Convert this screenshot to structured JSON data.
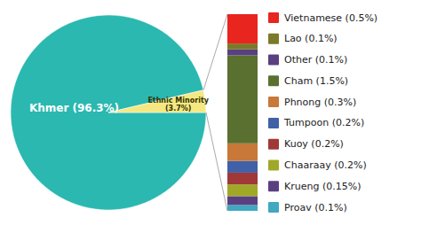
{
  "chart_data": [
    {
      "type": "pie",
      "categories": [
        "Khmer (96.3%)",
        "Ethnic Minority\n(3.7%)"
      ],
      "values": [
        96.3,
        3.7
      ],
      "colors": [
        "#2ab8b0",
        "#f5e882"
      ]
    },
    {
      "type": "bar",
      "stacked": true,
      "legend": "right",
      "tick_labels": false,
      "ylim": [
        0,
        3.35
      ],
      "series": [
        {
          "name": "Vietnamese (0.5%)",
          "color": "#e8251e",
          "values": [
            0.5
          ]
        },
        {
          "name": "Lao (0.1%)",
          "color": "#7a7a2a",
          "values": [
            0.1
          ]
        },
        {
          "name": "Other (0.1%)",
          "color": "#5a4080",
          "values": [
            0.1
          ]
        },
        {
          "name": "Cham (1.5%)",
          "color": "#5a7030",
          "values": [
            1.5
          ]
        },
        {
          "name": "Phnong (0.3%)",
          "color": "#c87838",
          "values": [
            0.3
          ]
        },
        {
          "name": "Tumpoon (0.2%)",
          "color": "#4060a8",
          "values": [
            0.2
          ]
        },
        {
          "name": "Kuoy (0.2%)",
          "color": "#a03838",
          "values": [
            0.2
          ]
        },
        {
          "name": "Chaaraay (0.2%)",
          "color": "#a0a828",
          "values": [
            0.2
          ]
        },
        {
          "name": "Krueng (0.15%)",
          "color": "#5a4080",
          "values": [
            0.15
          ]
        },
        {
          "name": "Proav (0.1%)",
          "color": "#40a8c0",
          "values": [
            0.1
          ]
        }
      ]
    }
  ]
}
